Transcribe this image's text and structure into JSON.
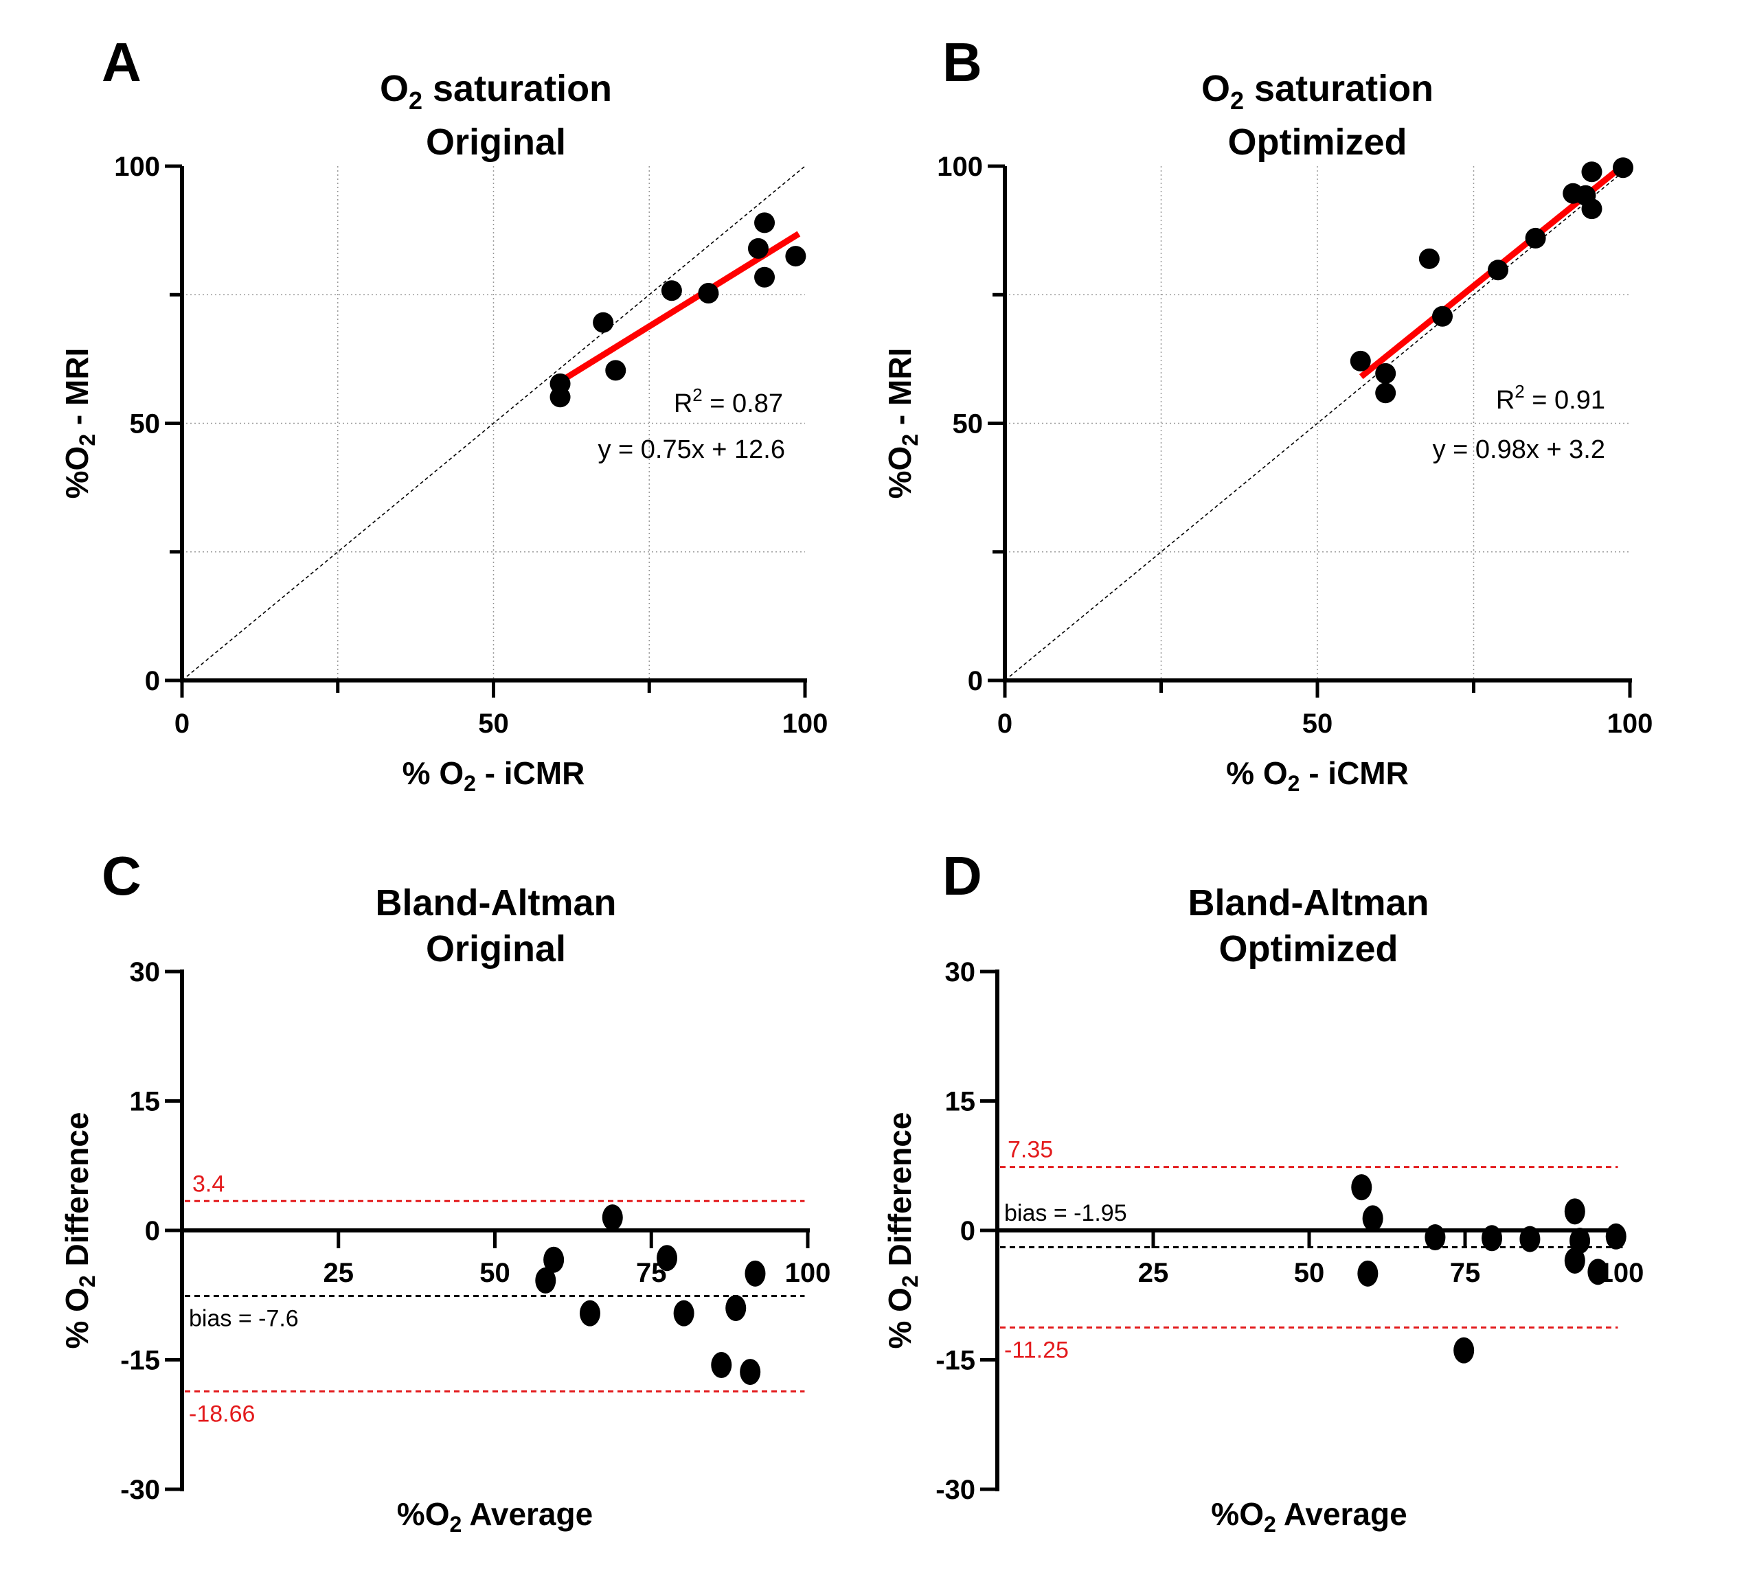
{
  "colors": {
    "fit_line": "#ff0000",
    "limits_of_agreement": "#e31a1c",
    "points": "#000000"
  },
  "chart_data": [
    {
      "id": "A",
      "type": "scatter",
      "panel_letter": "A",
      "title_line1_main": "O",
      "title_line1_sub": "2",
      "title_line1_rest": " saturation",
      "title_line2": "Original",
      "title": "O2 saturation Original",
      "xlabel": "% O2 - iCMR",
      "xlabel_parts": {
        "pre": "% O",
        "sub": "2",
        "post": " - iCMR"
      },
      "ylabel": "%O2 - MRI",
      "ylabel_parts": {
        "pre": "%O",
        "sub": "2",
        "post": " - MRI"
      },
      "xlim": [
        0,
        100
      ],
      "ylim": [
        0,
        100
      ],
      "xticks": [
        0,
        50,
        100
      ],
      "xtick_labels": [
        "0",
        "50",
        "100"
      ],
      "yticks": [
        0,
        50,
        100
      ],
      "ytick_labels": [
        "0",
        "50",
        "100"
      ],
      "minor_ticks": [
        25,
        75
      ],
      "grid": true,
      "identity_line": true,
      "points": [
        {
          "x": 60.7,
          "y": 57.7
        },
        {
          "x": 60.7,
          "y": 55.1
        },
        {
          "x": 67.6,
          "y": 69.6
        },
        {
          "x": 69.6,
          "y": 60.3
        },
        {
          "x": 78.6,
          "y": 75.8
        },
        {
          "x": 84.5,
          "y": 75.3
        },
        {
          "x": 93.5,
          "y": 89.0
        },
        {
          "x": 92.5,
          "y": 84.0
        },
        {
          "x": 93.5,
          "y": 78.4
        },
        {
          "x": 98.5,
          "y": 82.5
        }
      ],
      "fit": {
        "slope": 0.75,
        "intercept": 12.6,
        "x_range": [
          61,
          99
        ]
      },
      "r2_label": {
        "pre": "R",
        "sup": "2",
        "post": " = 0.87"
      },
      "equation_label": "y = 0.75x + 12.6"
    },
    {
      "id": "B",
      "type": "scatter",
      "panel_letter": "B",
      "title_line1_main": "O",
      "title_line1_sub": "2",
      "title_line1_rest": " saturation",
      "title_line2": "Optimized",
      "title": "O2 saturation Optimized",
      "xlabel": "% O2 - iCMR",
      "xlabel_parts": {
        "pre": "% O",
        "sub": "2",
        "post": " - iCMR"
      },
      "ylabel": "%O2 - MRI",
      "ylabel_parts": {
        "pre": "%O",
        "sub": "2",
        "post": " - MRI"
      },
      "xlim": [
        0,
        100
      ],
      "ylim": [
        0,
        100
      ],
      "xticks": [
        0,
        50,
        100
      ],
      "xtick_labels": [
        "0",
        "50",
        "100"
      ],
      "yticks": [
        0,
        50,
        100
      ],
      "ytick_labels": [
        "0",
        "50",
        "100"
      ],
      "minor_ticks": [
        25,
        75
      ],
      "grid": true,
      "identity_line": true,
      "points": [
        {
          "x": 56.9,
          "y": 62.1
        },
        {
          "x": 60.9,
          "y": 59.7
        },
        {
          "x": 60.9,
          "y": 55.9
        },
        {
          "x": 67.9,
          "y": 82.0
        },
        {
          "x": 70.0,
          "y": 70.8
        },
        {
          "x": 78.9,
          "y": 79.8
        },
        {
          "x": 84.9,
          "y": 86.0
        },
        {
          "x": 90.9,
          "y": 94.7
        },
        {
          "x": 92.9,
          "y": 94.3
        },
        {
          "x": 93.9,
          "y": 91.7
        },
        {
          "x": 93.9,
          "y": 98.9
        },
        {
          "x": 98.9,
          "y": 99.7
        }
      ],
      "fit": {
        "slope": 0.98,
        "intercept": 3.2,
        "x_range": [
          57,
          99
        ]
      },
      "r2_label": {
        "pre": "R",
        "sup": "2",
        "post": " = 0.91"
      },
      "equation_label": "y = 0.98x + 3.2"
    },
    {
      "id": "C",
      "type": "scatter",
      "subtype": "bland-altman",
      "panel_letter": "C",
      "title_line1": "Bland-Altman",
      "title_line2": "Original",
      "title": "Bland-Altman Original",
      "xlabel": "%O2 Average",
      "xlabel_parts": {
        "pre": "%O",
        "sub": "2",
        "post": " Average"
      },
      "ylabel": "% O2 Difference",
      "ylabel_parts": {
        "pre": "% O",
        "sub": "2",
        "post": " Difference"
      },
      "xlim": [
        0,
        100
      ],
      "ylim": [
        -30,
        30
      ],
      "xticks": [
        25,
        50,
        75,
        100
      ],
      "xtick_labels": [
        "25",
        "50",
        "75",
        "100"
      ],
      "yticks": [
        -30,
        -15,
        0,
        15,
        30
      ],
      "ytick_labels": [
        "-30",
        "-15",
        "0",
        "15",
        "30"
      ],
      "grid": false,
      "points": [
        {
          "x": 68.8,
          "y": 1.5
        },
        {
          "x": 59.4,
          "y": -3.4
        },
        {
          "x": 58.1,
          "y": -5.8
        },
        {
          "x": 65.2,
          "y": -9.6
        },
        {
          "x": 77.5,
          "y": -3.2
        },
        {
          "x": 80.2,
          "y": -9.6
        },
        {
          "x": 88.5,
          "y": -9.0
        },
        {
          "x": 91.6,
          "y": -5.0
        },
        {
          "x": 86.2,
          "y": -15.6
        },
        {
          "x": 90.8,
          "y": -16.4
        }
      ],
      "bias": -7.6,
      "bias_label": "bias = -7.6",
      "upper_loa": 3.4,
      "upper_loa_label": "3.4",
      "lower_loa": -18.66,
      "lower_loa_label": "-18.66"
    },
    {
      "id": "D",
      "type": "scatter",
      "subtype": "bland-altman",
      "panel_letter": "D",
      "title_line1": "Bland-Altman",
      "title_line2": "Optimized",
      "title": "Bland-Altman Optimized",
      "xlabel": "%O2 Average",
      "xlabel_parts": {
        "pre": "%O",
        "sub": "2",
        "post": " Average"
      },
      "ylabel": "% O2 Difference",
      "ylabel_parts": {
        "pre": "% O",
        "sub": "2",
        "post": " Difference"
      },
      "xlim": [
        0,
        100
      ],
      "ylim": [
        -30,
        30
      ],
      "xticks": [
        25,
        50,
        75,
        100
      ],
      "xtick_labels": [
        "25",
        "50",
        "75",
        "100"
      ],
      "yticks": [
        -30,
        -15,
        0,
        15,
        30
      ],
      "ytick_labels": [
        "-30",
        "-15",
        "0",
        "15",
        "30"
      ],
      "grid": false,
      "points": [
        {
          "x": 58.4,
          "y": 5.0
        },
        {
          "x": 60.2,
          "y": 1.4
        },
        {
          "x": 59.4,
          "y": -5.0
        },
        {
          "x": 70.2,
          "y": -0.8
        },
        {
          "x": 74.8,
          "y": -13.9
        },
        {
          "x": 79.3,
          "y": -0.9
        },
        {
          "x": 85.4,
          "y": -1.0
        },
        {
          "x": 92.6,
          "y": 2.2
        },
        {
          "x": 93.4,
          "y": -1.2
        },
        {
          "x": 92.6,
          "y": -3.5
        },
        {
          "x": 96.3,
          "y": -4.8
        },
        {
          "x": 99.2,
          "y": -0.7
        }
      ],
      "bias": -1.95,
      "bias_label": "bias = -1.95",
      "upper_loa": 7.35,
      "upper_loa_label": "7.35",
      "lower_loa": -11.25,
      "lower_loa_label": "-11.25"
    }
  ]
}
